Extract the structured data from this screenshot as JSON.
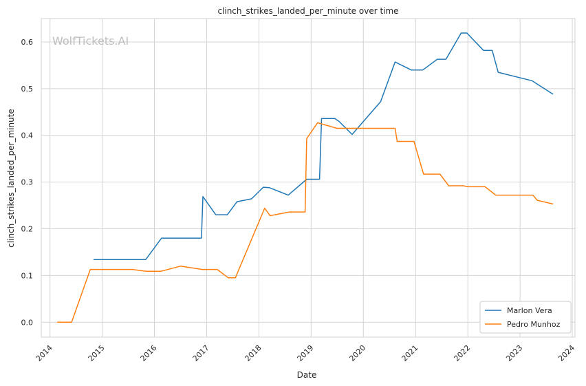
{
  "watermark": "WolfTickets.AI",
  "chart_data": {
    "type": "line",
    "title": "clinch_strikes_landed_per_minute over time",
    "xlabel": "Date",
    "ylabel": "clinch_strikes_landed_per_minute",
    "x_type": "date",
    "xlim": [
      "2013-11-01",
      "2024-01-20"
    ],
    "ylim": [
      -0.032,
      0.65
    ],
    "x_ticks": [
      "2014",
      "2015",
      "2016",
      "2017",
      "2018",
      "2019",
      "2020",
      "2021",
      "2022",
      "2023",
      "2024"
    ],
    "y_ticks": [
      "0.0",
      "0.1",
      "0.2",
      "0.3",
      "0.4",
      "0.5",
      "0.6"
    ],
    "grid": true,
    "legend_position": "bottom-right",
    "series": [
      {
        "name": "Marlon Vera",
        "color": "#1f77b4",
        "points": [
          [
            "2014-11-01",
            0.134
          ],
          [
            "2015-11-01",
            0.134
          ],
          [
            "2016-02-20",
            0.18
          ],
          [
            "2016-11-25",
            0.18
          ],
          [
            "2016-12-05",
            0.269
          ],
          [
            "2017-03-05",
            0.23
          ],
          [
            "2017-05-25",
            0.23
          ],
          [
            "2017-08-01",
            0.258
          ],
          [
            "2017-11-10",
            0.264
          ],
          [
            "2018-02-01",
            0.289
          ],
          [
            "2018-03-15",
            0.288
          ],
          [
            "2018-07-25",
            0.272
          ],
          [
            "2018-12-01",
            0.306
          ],
          [
            "2019-03-01",
            0.306
          ],
          [
            "2019-03-15",
            0.436
          ],
          [
            "2019-06-15",
            0.436
          ],
          [
            "2019-07-15",
            0.43
          ],
          [
            "2019-10-15",
            0.402
          ],
          [
            "2020-05-01",
            0.472
          ],
          [
            "2020-08-10",
            0.557
          ],
          [
            "2020-12-01",
            0.54
          ],
          [
            "2021-02-20",
            0.54
          ],
          [
            "2021-06-01",
            0.563
          ],
          [
            "2021-08-01",
            0.563
          ],
          [
            "2021-11-15",
            0.619
          ],
          [
            "2021-12-25",
            0.619
          ],
          [
            "2022-04-20",
            0.582
          ],
          [
            "2022-06-20",
            0.582
          ],
          [
            "2022-08-01",
            0.535
          ],
          [
            "2023-03-25",
            0.517
          ],
          [
            "2023-08-20",
            0.488
          ]
        ]
      },
      {
        "name": "Pedro Munhoz",
        "color": "#ff7f0e",
        "points": [
          [
            "2014-02-20",
            0.0
          ],
          [
            "2014-06-01",
            0.0
          ],
          [
            "2014-10-10",
            0.113
          ],
          [
            "2015-08-01",
            0.113
          ],
          [
            "2015-11-01",
            0.109
          ],
          [
            "2016-02-15",
            0.109
          ],
          [
            "2016-07-01",
            0.12
          ],
          [
            "2016-12-01",
            0.113
          ],
          [
            "2017-03-15",
            0.113
          ],
          [
            "2017-06-01",
            0.095
          ],
          [
            "2017-07-20",
            0.095
          ],
          [
            "2018-02-10",
            0.244
          ],
          [
            "2018-03-20",
            0.228
          ],
          [
            "2018-08-01",
            0.236
          ],
          [
            "2018-11-20",
            0.236
          ],
          [
            "2018-12-01",
            0.393
          ],
          [
            "2019-02-15",
            0.427
          ],
          [
            "2019-07-01",
            0.415
          ],
          [
            "2020-08-10",
            0.415
          ],
          [
            "2020-08-25",
            0.387
          ],
          [
            "2020-12-20",
            0.387
          ],
          [
            "2021-02-25",
            0.317
          ],
          [
            "2021-06-20",
            0.317
          ],
          [
            "2021-08-20",
            0.292
          ],
          [
            "2021-12-01",
            0.292
          ],
          [
            "2022-01-01",
            0.29
          ],
          [
            "2022-05-01",
            0.29
          ],
          [
            "2022-07-15",
            0.272
          ],
          [
            "2023-04-01",
            0.272
          ],
          [
            "2023-05-01",
            0.261
          ],
          [
            "2023-08-20",
            0.253
          ]
        ]
      }
    ]
  }
}
